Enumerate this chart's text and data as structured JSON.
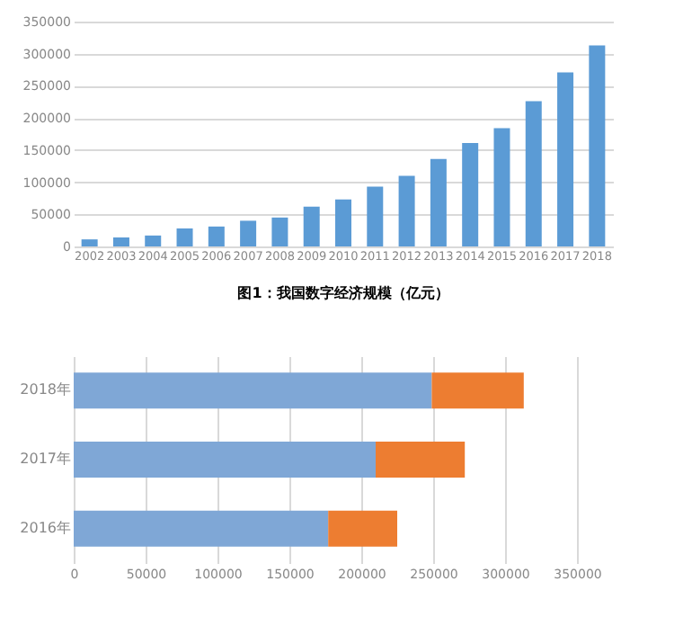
{
  "chart_data": [
    {
      "type": "bar",
      "title": "图1：我国数字经济规模（亿元）",
      "categories": [
        "2002",
        "2003",
        "2004",
        "2005",
        "2006",
        "2007",
        "2008",
        "2009",
        "2010",
        "2011",
        "2012",
        "2013",
        "2014",
        "2015",
        "2016",
        "2017",
        "2018"
      ],
      "values": [
        11000,
        14000,
        17000,
        28000,
        31000,
        40000,
        45000,
        62000,
        73000,
        93000,
        110000,
        136000,
        161000,
        184000,
        226000,
        271000,
        313000
      ],
      "color": "#5b9bd5",
      "ylim": [
        0,
        350000
      ],
      "yticks": [
        0,
        50000,
        100000,
        150000,
        200000,
        250000,
        300000,
        350000
      ],
      "grid": "y"
    },
    {
      "type": "bar",
      "orientation": "horizontal",
      "stacked": true,
      "categories": [
        "2018年",
        "2017年",
        "2016年"
      ],
      "series": [
        {
          "color": "#7fa7d6",
          "values": [
            249000,
            210000,
            177000
          ]
        },
        {
          "color": "#ed7d31",
          "values": [
            64000,
            62000,
            48000
          ]
        }
      ],
      "xlim": [
        0,
        350000
      ],
      "xticks": [
        0,
        50000,
        100000,
        150000,
        200000,
        250000,
        300000,
        350000
      ],
      "grid": "x"
    }
  ]
}
